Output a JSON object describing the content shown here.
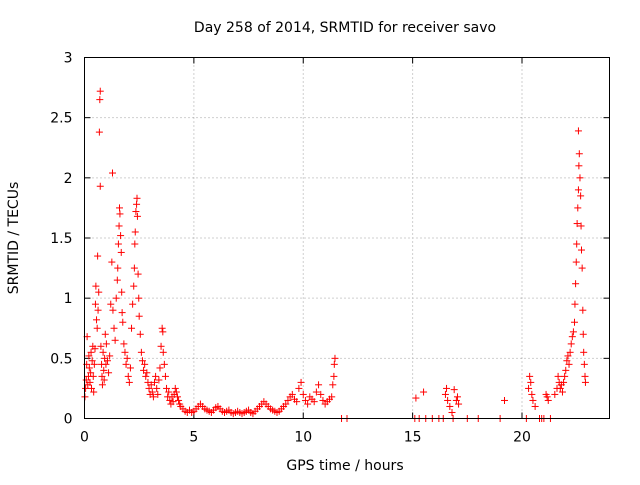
{
  "chart_data": {
    "type": "scatter",
    "title": "Day 258 of 2014, SRMTID for receiver savo",
    "xlabel": "GPS time / hours",
    "ylabel": "SRMTID / TECUs",
    "xlim": [
      0,
      24
    ],
    "ylim": [
      0,
      3
    ],
    "x_ticks": [
      0,
      5,
      10,
      15,
      20
    ],
    "y_ticks": [
      0,
      0.5,
      1,
      1.5,
      2,
      2.5,
      3
    ],
    "x_tick_labels": [
      "0",
      "5",
      "10",
      "15",
      "20"
    ],
    "y_tick_labels": [
      "0",
      "0.5",
      "1",
      "1.5",
      "2",
      "2.5",
      "3"
    ],
    "grid": true,
    "marker": "+",
    "series": [
      {
        "name": "SRMTID",
        "color": "#ff0000",
        "points": [
          [
            0.02,
            0.18
          ],
          [
            0.05,
            0.25
          ],
          [
            0.08,
            0.32
          ],
          [
            0.1,
            0.45
          ],
          [
            0.12,
            0.68
          ],
          [
            0.15,
            0.28
          ],
          [
            0.18,
            0.35
          ],
          [
            0.2,
            0.52
          ],
          [
            0.22,
            0.42
          ],
          [
            0.25,
            0.3
          ],
          [
            0.28,
            0.38
          ],
          [
            0.3,
            0.55
          ],
          [
            0.32,
            0.25
          ],
          [
            0.35,
            0.48
          ],
          [
            0.38,
            0.6
          ],
          [
            0.4,
            0.35
          ],
          [
            0.42,
            0.22
          ],
          [
            0.45,
            0.45
          ],
          [
            0.48,
            0.58
          ],
          [
            0.5,
            0.95
          ],
          [
            0.52,
            1.1
          ],
          [
            0.55,
            0.82
          ],
          [
            0.58,
            0.75
          ],
          [
            0.6,
            1.35
          ],
          [
            0.62,
            0.9
          ],
          [
            0.65,
            1.05
          ],
          [
            0.68,
            2.38
          ],
          [
            0.7,
            2.65
          ],
          [
            0.72,
            2.72
          ],
          [
            0.72,
            1.93
          ],
          [
            0.75,
            0.6
          ],
          [
            0.78,
            0.45
          ],
          [
            0.8,
            0.35
          ],
          [
            0.82,
            0.28
          ],
          [
            0.85,
            0.55
          ],
          [
            0.88,
            0.4
          ],
          [
            0.9,
            0.32
          ],
          [
            0.92,
            0.5
          ],
          [
            0.95,
            0.7
          ],
          [
            0.98,
            0.45
          ],
          [
            1.0,
            0.62
          ],
          [
            1.05,
            0.48
          ],
          [
            1.1,
            0.38
          ],
          [
            1.15,
            0.52
          ],
          [
            1.2,
            0.95
          ],
          [
            1.25,
            1.3
          ],
          [
            1.28,
            2.04
          ],
          [
            1.3,
            0.9
          ],
          [
            1.35,
            0.75
          ],
          [
            1.4,
            0.65
          ],
          [
            1.45,
            1.0
          ],
          [
            1.5,
            1.15
          ],
          [
            1.52,
            1.25
          ],
          [
            1.55,
            1.45
          ],
          [
            1.58,
            1.6
          ],
          [
            1.6,
            1.75
          ],
          [
            1.62,
            1.7
          ],
          [
            1.65,
            1.52
          ],
          [
            1.68,
            1.38
          ],
          [
            1.7,
            1.05
          ],
          [
            1.72,
            0.88
          ],
          [
            1.75,
            0.8
          ],
          [
            1.8,
            0.62
          ],
          [
            1.85,
            0.55
          ],
          [
            1.9,
            0.45
          ],
          [
            1.95,
            0.5
          ],
          [
            2.0,
            0.35
          ],
          [
            2.05,
            0.3
          ],
          [
            2.1,
            0.42
          ],
          [
            2.15,
            0.75
          ],
          [
            2.2,
            0.95
          ],
          [
            2.25,
            1.1
          ],
          [
            2.28,
            1.25
          ],
          [
            2.3,
            1.45
          ],
          [
            2.32,
            1.55
          ],
          [
            2.35,
            1.72
          ],
          [
            2.38,
            1.78
          ],
          [
            2.4,
            1.83
          ],
          [
            2.42,
            1.68
          ],
          [
            2.45,
            1.2
          ],
          [
            2.48,
            1.0
          ],
          [
            2.5,
            0.85
          ],
          [
            2.55,
            0.7
          ],
          [
            2.6,
            0.55
          ],
          [
            2.65,
            0.48
          ],
          [
            2.7,
            0.4
          ],
          [
            2.75,
            0.45
          ],
          [
            2.8,
            0.35
          ],
          [
            2.85,
            0.38
          ],
          [
            2.9,
            0.3
          ],
          [
            2.95,
            0.25
          ],
          [
            3.0,
            0.2
          ],
          [
            3.05,
            0.28
          ],
          [
            3.1,
            0.22
          ],
          [
            3.15,
            0.18
          ],
          [
            3.2,
            0.3
          ],
          [
            3.25,
            0.35
          ],
          [
            3.3,
            0.25
          ],
          [
            3.35,
            0.2
          ],
          [
            3.4,
            0.32
          ],
          [
            3.45,
            0.42
          ],
          [
            3.5,
            0.6
          ],
          [
            3.55,
            0.75
          ],
          [
            3.58,
            0.72
          ],
          [
            3.6,
            0.55
          ],
          [
            3.65,
            0.45
          ],
          [
            3.7,
            0.35
          ],
          [
            3.75,
            0.25
          ],
          [
            3.8,
            0.18
          ],
          [
            3.85,
            0.22
          ],
          [
            3.9,
            0.15
          ],
          [
            3.95,
            0.12
          ],
          [
            4.0,
            0.18
          ],
          [
            4.05,
            0.14
          ],
          [
            4.1,
            0.2
          ],
          [
            4.15,
            0.25
          ],
          [
            4.2,
            0.22
          ],
          [
            4.25,
            0.18
          ],
          [
            4.3,
            0.15
          ],
          [
            4.35,
            0.12
          ],
          [
            4.4,
            0.1
          ],
          [
            4.5,
            0.08
          ],
          [
            4.6,
            0.06
          ],
          [
            4.7,
            0.05
          ],
          [
            4.8,
            0.07
          ],
          [
            4.9,
            0.05
          ],
          [
            5.0,
            0.06
          ],
          [
            5.1,
            0.08
          ],
          [
            5.2,
            0.1
          ],
          [
            5.3,
            0.12
          ],
          [
            5.4,
            0.1
          ],
          [
            5.5,
            0.08
          ],
          [
            5.6,
            0.07
          ],
          [
            5.7,
            0.06
          ],
          [
            5.8,
            0.05
          ],
          [
            5.9,
            0.07
          ],
          [
            6.0,
            0.09
          ],
          [
            6.1,
            0.1
          ],
          [
            6.2,
            0.08
          ],
          [
            6.3,
            0.06
          ],
          [
            6.4,
            0.05
          ],
          [
            6.5,
            0.06
          ],
          [
            6.6,
            0.07
          ],
          [
            6.7,
            0.05
          ],
          [
            6.8,
            0.04
          ],
          [
            6.9,
            0.05
          ],
          [
            7.0,
            0.06
          ],
          [
            7.1,
            0.05
          ],
          [
            7.2,
            0.04
          ],
          [
            7.3,
            0.05
          ],
          [
            7.4,
            0.06
          ],
          [
            7.5,
            0.07
          ],
          [
            7.6,
            0.05
          ],
          [
            7.7,
            0.04
          ],
          [
            7.8,
            0.06
          ],
          [
            7.9,
            0.08
          ],
          [
            8.0,
            0.1
          ],
          [
            8.1,
            0.12
          ],
          [
            8.2,
            0.14
          ],
          [
            8.3,
            0.12
          ],
          [
            8.4,
            0.1
          ],
          [
            8.5,
            0.08
          ],
          [
            8.6,
            0.07
          ],
          [
            8.7,
            0.06
          ],
          [
            8.8,
            0.05
          ],
          [
            8.9,
            0.06
          ],
          [
            9.0,
            0.08
          ],
          [
            9.1,
            0.1
          ],
          [
            9.2,
            0.12
          ],
          [
            9.3,
            0.15
          ],
          [
            9.4,
            0.18
          ],
          [
            9.5,
            0.2
          ],
          [
            9.6,
            0.16
          ],
          [
            9.7,
            0.14
          ],
          [
            9.8,
            0.25
          ],
          [
            9.9,
            0.3
          ],
          [
            10.0,
            0.2
          ],
          [
            10.1,
            0.15
          ],
          [
            10.2,
            0.12
          ],
          [
            10.3,
            0.18
          ],
          [
            10.4,
            0.16
          ],
          [
            10.5,
            0.14
          ],
          [
            10.6,
            0.22
          ],
          [
            10.7,
            0.28
          ],
          [
            10.8,
            0.2
          ],
          [
            10.9,
            0.15
          ],
          [
            11.0,
            0.12
          ],
          [
            11.1,
            0.14
          ],
          [
            11.2,
            0.16
          ],
          [
            11.3,
            0.18
          ],
          [
            11.35,
            0.28
          ],
          [
            11.4,
            0.35
          ],
          [
            11.42,
            0.45
          ],
          [
            11.45,
            0.5
          ],
          [
            11.75,
            0.0
          ],
          [
            12.0,
            0.0
          ],
          [
            15.1,
            0.0
          ],
          [
            15.15,
            0.17
          ],
          [
            15.3,
            0.0
          ],
          [
            15.5,
            0.22
          ],
          [
            15.6,
            0.0
          ],
          [
            15.9,
            0.0
          ],
          [
            16.2,
            0.0
          ],
          [
            16.4,
            0.0
          ],
          [
            16.5,
            0.2
          ],
          [
            16.55,
            0.25
          ],
          [
            16.6,
            0.15
          ],
          [
            16.7,
            0.1
          ],
          [
            16.8,
            0.05
          ],
          [
            16.85,
            0.0
          ],
          [
            16.9,
            0.24
          ],
          [
            17.0,
            0.15
          ],
          [
            17.05,
            0.18
          ],
          [
            17.1,
            0.12
          ],
          [
            17.5,
            0.0
          ],
          [
            18.0,
            0.0
          ],
          [
            19.0,
            0.0
          ],
          [
            19.2,
            0.15
          ],
          [
            20.2,
            0.0
          ],
          [
            20.3,
            0.25
          ],
          [
            20.35,
            0.35
          ],
          [
            20.4,
            0.3
          ],
          [
            20.45,
            0.2
          ],
          [
            20.5,
            0.15
          ],
          [
            20.6,
            0.1
          ],
          [
            20.8,
            0.0
          ],
          [
            20.9,
            0.0
          ],
          [
            21.0,
            0.0
          ],
          [
            21.1,
            0.2
          ],
          [
            21.15,
            0.18
          ],
          [
            21.2,
            0.15
          ],
          [
            21.3,
            0.0
          ],
          [
            21.5,
            0.2
          ],
          [
            21.6,
            0.25
          ],
          [
            21.65,
            0.35
          ],
          [
            21.7,
            0.3
          ],
          [
            21.75,
            0.25
          ],
          [
            21.8,
            0.28
          ],
          [
            21.85,
            0.22
          ],
          [
            21.9,
            0.3
          ],
          [
            21.95,
            0.35
          ],
          [
            22.0,
            0.4
          ],
          [
            22.05,
            0.48
          ],
          [
            22.1,
            0.52
          ],
          [
            22.15,
            0.45
          ],
          [
            22.2,
            0.55
          ],
          [
            22.25,
            0.62
          ],
          [
            22.3,
            0.68
          ],
          [
            22.35,
            0.72
          ],
          [
            22.4,
            0.8
          ],
          [
            22.42,
            0.95
          ],
          [
            22.45,
            1.12
          ],
          [
            22.48,
            1.3
          ],
          [
            22.5,
            1.45
          ],
          [
            22.52,
            1.62
          ],
          [
            22.55,
            1.75
          ],
          [
            22.58,
            1.9
          ],
          [
            22.6,
            2.1
          ],
          [
            22.62,
            2.2
          ],
          [
            22.65,
            2.0
          ],
          [
            22.68,
            1.85
          ],
          [
            22.7,
            1.6
          ],
          [
            22.72,
            1.4
          ],
          [
            22.75,
            1.25
          ],
          [
            22.78,
            0.9
          ],
          [
            22.8,
            0.7
          ],
          [
            22.82,
            0.55
          ],
          [
            22.85,
            0.45
          ],
          [
            22.88,
            0.35
          ],
          [
            22.9,
            0.3
          ],
          [
            22.58,
            2.39
          ]
        ]
      }
    ]
  }
}
